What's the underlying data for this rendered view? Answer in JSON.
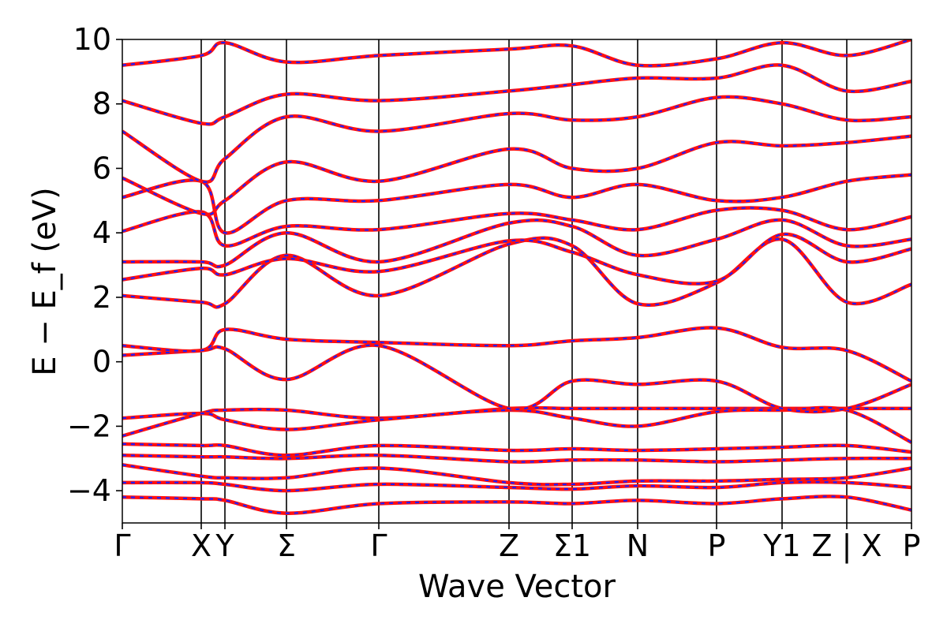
{
  "chart_data": {
    "type": "line",
    "xlabel": "Wave Vector",
    "ylabel": "E − E_f (eV)",
    "ylim": [
      -5,
      10
    ],
    "y_ticks": [
      -4,
      -2,
      0,
      2,
      4,
      6,
      8,
      10
    ],
    "y_tick_labels": [
      "−4",
      "−2",
      "0",
      "2",
      "4",
      "6",
      "8",
      "10"
    ],
    "k_points": [
      "Γ",
      "X",
      "Y",
      "Σ",
      "Γ",
      "Z",
      "Σ1",
      "N",
      "P",
      "Y1",
      "Z | X",
      "P"
    ],
    "k_positions": [
      0,
      0.1,
      0.13,
      0.208,
      0.325,
      0.49,
      0.57,
      0.653,
      0.753,
      0.836,
      0.918,
      1.0
    ],
    "grid": false,
    "colors": {
      "band": "#ff1010",
      "band_overlay": "#1f1fff",
      "axis": "#000000"
    },
    "series_styles": [
      {
        "color": "#ff1010",
        "style": "solid"
      },
      {
        "color": "#1f1fff",
        "style": "dashed"
      }
    ],
    "bands": [
      {
        "x": [
          0,
          0.1,
          0.13,
          0.208,
          0.325,
          0.49,
          0.57,
          0.653,
          0.753,
          0.836,
          0.918,
          1.0
        ],
        "y": [
          -4.2,
          -4.25,
          -4.3,
          -4.7,
          -4.4,
          -4.35,
          -4.4,
          -4.3,
          -4.4,
          -4.25,
          -4.2,
          -4.6
        ]
      },
      {
        "x": [
          0,
          0.1,
          0.13,
          0.208,
          0.325,
          0.49,
          0.57,
          0.653,
          0.753,
          0.836,
          0.918,
          1.0
        ],
        "y": [
          -3.75,
          -3.75,
          -3.8,
          -4.0,
          -3.8,
          -3.9,
          -3.95,
          -3.85,
          -3.9,
          -3.75,
          -3.75,
          -3.9
        ]
      },
      {
        "x": [
          0,
          0.1,
          0.13,
          0.208,
          0.325,
          0.49,
          0.57,
          0.653,
          0.753,
          0.836,
          0.918,
          1.0
        ],
        "y": [
          -3.2,
          -3.55,
          -3.6,
          -3.6,
          -3.3,
          -3.75,
          -3.8,
          -3.7,
          -3.7,
          -3.65,
          -3.6,
          -3.3
        ]
      },
      {
        "x": [
          0,
          0.1,
          0.13,
          0.208,
          0.325,
          0.49,
          0.57,
          0.653,
          0.753,
          0.836,
          0.918,
          1.0
        ],
        "y": [
          -2.9,
          -2.95,
          -2.95,
          -3.0,
          -2.9,
          -3.1,
          -3.05,
          -3.05,
          -3.1,
          -3.05,
          -3.0,
          -3.0
        ]
      },
      {
        "x": [
          0,
          0.1,
          0.13,
          0.208,
          0.325,
          0.49,
          0.57,
          0.653,
          0.753,
          0.836,
          0.918,
          1.0
        ],
        "y": [
          -2.55,
          -2.6,
          -2.6,
          -2.9,
          -2.6,
          -2.75,
          -2.7,
          -2.75,
          -2.7,
          -2.65,
          -2.6,
          -2.8
        ]
      },
      {
        "x": [
          0,
          0.1,
          0.13,
          0.208,
          0.325,
          0.49,
          0.57,
          0.653,
          0.753,
          0.836,
          0.918,
          1.0
        ],
        "y": [
          -2.3,
          -1.6,
          -1.5,
          -1.5,
          -1.75,
          -1.45,
          -1.45,
          -1.45,
          -1.45,
          -1.45,
          -1.45,
          -1.45
        ]
      },
      {
        "x": [
          0,
          0.1,
          0.13,
          0.208,
          0.325,
          0.49,
          0.57,
          0.653,
          0.753,
          0.836,
          0.918,
          1.0
        ],
        "y": [
          -1.75,
          -1.6,
          -1.8,
          -2.1,
          -1.8,
          -1.5,
          -1.75,
          -2.0,
          -1.55,
          -1.5,
          -1.5,
          -2.5
        ]
      },
      {
        "x": [
          0,
          0.1,
          0.13,
          0.208,
          0.325,
          0.49,
          0.57,
          0.653,
          0.753,
          0.836,
          0.918,
          1.0
        ],
        "y": [
          0.2,
          0.35,
          0.4,
          -0.55,
          0.5,
          -1.45,
          -0.6,
          -0.7,
          -0.6,
          -1.45,
          -1.45,
          -0.7
        ]
      },
      {
        "x": [
          0,
          0.1,
          0.13,
          0.208,
          0.325,
          0.49,
          0.57,
          0.653,
          0.753,
          0.836,
          0.918,
          1.0
        ],
        "y": [
          0.5,
          0.35,
          1.0,
          0.7,
          0.6,
          0.5,
          0.65,
          0.75,
          1.05,
          0.45,
          0.35,
          -0.6
        ]
      },
      {
        "x": [
          0,
          0.1,
          0.13,
          0.208,
          0.325,
          0.49,
          0.57,
          0.653,
          0.753,
          0.836,
          0.918,
          1.0
        ],
        "y": [
          2.05,
          1.85,
          1.8,
          3.3,
          2.05,
          3.65,
          3.6,
          1.8,
          2.45,
          3.8,
          1.85,
          2.4
        ]
      },
      {
        "x": [
          0,
          0.1,
          0.13,
          0.208,
          0.325,
          0.49,
          0.57,
          0.653,
          0.753,
          0.836,
          0.918,
          1.0
        ],
        "y": [
          2.55,
          2.9,
          2.7,
          3.2,
          2.8,
          3.75,
          3.4,
          2.7,
          2.5,
          3.95,
          3.1,
          3.5
        ]
      },
      {
        "x": [
          0,
          0.1,
          0.13,
          0.208,
          0.325,
          0.49,
          0.57,
          0.653,
          0.753,
          0.836,
          0.918,
          1.0
        ],
        "y": [
          3.1,
          3.1,
          3.0,
          4.0,
          3.1,
          4.3,
          4.2,
          3.3,
          3.8,
          4.4,
          3.6,
          3.8
        ]
      },
      {
        "x": [
          0,
          0.1,
          0.13,
          0.208,
          0.325,
          0.49,
          0.57,
          0.653,
          0.753,
          0.836,
          0.918,
          1.0
        ],
        "y": [
          4.05,
          4.65,
          3.6,
          4.2,
          4.1,
          4.6,
          4.4,
          4.1,
          4.7,
          4.7,
          4.1,
          4.5
        ]
      },
      {
        "x": [
          0,
          0.1,
          0.13,
          0.208,
          0.325,
          0.49,
          0.57,
          0.653,
          0.753,
          0.836,
          0.918,
          1.0
        ],
        "y": [
          5.1,
          5.6,
          4.0,
          5.0,
          5.0,
          5.5,
          5.1,
          5.5,
          5.0,
          5.1,
          5.6,
          5.8
        ]
      },
      {
        "x": [
          0,
          0.1,
          0.13,
          0.208,
          0.325,
          0.49,
          0.57,
          0.653,
          0.753,
          0.836,
          0.918,
          1.0
        ],
        "y": [
          5.7,
          4.6,
          5.0,
          6.2,
          5.6,
          6.6,
          6.0,
          6.0,
          6.8,
          6.7,
          6.8,
          7.0
        ]
      },
      {
        "x": [
          0,
          0.1,
          0.13,
          0.208,
          0.325,
          0.49,
          0.57,
          0.653,
          0.753,
          0.836,
          0.918,
          1.0
        ],
        "y": [
          7.15,
          5.6,
          6.3,
          7.6,
          7.15,
          7.7,
          7.5,
          7.6,
          8.2,
          8.0,
          7.5,
          7.6
        ]
      },
      {
        "x": [
          0,
          0.1,
          0.13,
          0.208,
          0.325,
          0.49,
          0.57,
          0.653,
          0.753,
          0.836,
          0.918,
          1.0
        ],
        "y": [
          8.1,
          7.4,
          7.6,
          8.3,
          8.1,
          8.4,
          8.6,
          8.8,
          8.8,
          9.2,
          8.4,
          8.7
        ]
      },
      {
        "x": [
          0,
          0.1,
          0.13,
          0.208,
          0.325,
          0.49,
          0.57,
          0.653,
          0.753,
          0.836,
          0.918,
          1.0
        ],
        "y": [
          9.2,
          9.5,
          9.9,
          9.3,
          9.5,
          9.7,
          9.8,
          9.2,
          9.4,
          9.9,
          9.5,
          10.0
        ]
      }
    ]
  }
}
